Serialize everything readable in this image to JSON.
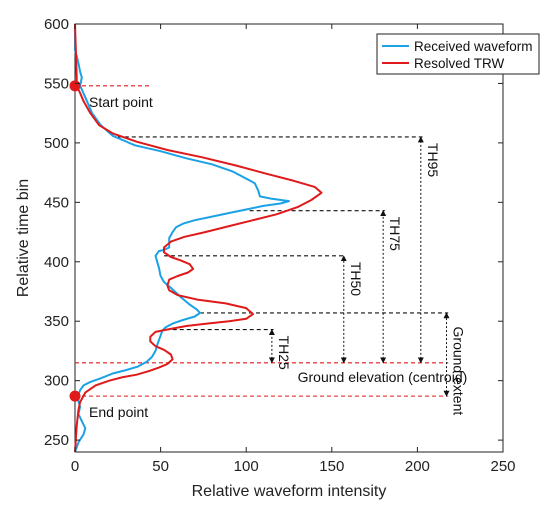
{
  "chart_data": {
    "type": "line",
    "xlabel": "Relative waveform intensity",
    "ylabel": "Relative time bin",
    "xlim": [
      0,
      250
    ],
    "ylim": [
      240,
      600
    ],
    "x_ticks": [
      0,
      50,
      100,
      150,
      200,
      250
    ],
    "y_ticks": [
      250,
      300,
      350,
      400,
      450,
      500,
      550,
      600
    ],
    "grid": false,
    "legend_position": "top-right",
    "series": [
      {
        "name": "Received waveform",
        "color": "#1aa1e6",
        "points": [
          [
            0,
            240
          ],
          [
            2,
            248
          ],
          [
            5,
            255
          ],
          [
            6,
            260
          ],
          [
            4,
            266
          ],
          [
            2,
            272
          ],
          [
            3,
            278
          ],
          [
            2,
            283
          ],
          [
            2,
            288
          ],
          [
            3,
            292
          ],
          [
            5,
            296
          ],
          [
            9,
            299
          ],
          [
            15,
            302
          ],
          [
            22,
            306
          ],
          [
            30,
            309
          ],
          [
            37,
            312
          ],
          [
            42,
            316
          ],
          [
            45,
            320
          ],
          [
            47,
            325
          ],
          [
            48,
            330
          ],
          [
            49,
            334
          ],
          [
            50,
            338
          ],
          [
            51,
            342
          ],
          [
            53,
            345
          ],
          [
            57,
            348
          ],
          [
            63,
            351
          ],
          [
            70,
            354
          ],
          [
            73,
            357
          ],
          [
            71,
            360
          ],
          [
            67,
            364
          ],
          [
            62,
            370
          ],
          [
            56,
            378
          ],
          [
            52,
            383
          ],
          [
            50,
            388
          ],
          [
            49,
            395
          ],
          [
            48,
            400
          ],
          [
            47,
            405
          ],
          [
            49,
            409
          ],
          [
            52,
            410
          ],
          [
            55,
            412
          ],
          [
            55,
            420
          ],
          [
            57,
            425
          ],
          [
            59,
            429
          ],
          [
            63,
            432
          ],
          [
            70,
            435
          ],
          [
            80,
            438
          ],
          [
            90,
            441
          ],
          [
            100,
            444
          ],
          [
            110,
            447
          ],
          [
            120,
            449
          ],
          [
            125,
            451
          ],
          [
            115,
            453
          ],
          [
            108,
            455
          ],
          [
            107,
            460
          ],
          [
            105,
            466
          ],
          [
            100,
            470
          ],
          [
            92,
            476
          ],
          [
            80,
            482
          ],
          [
            65,
            487
          ],
          [
            50,
            493
          ],
          [
            35,
            498
          ],
          [
            22,
            506
          ],
          [
            15,
            515
          ],
          [
            10,
            525
          ],
          [
            7,
            535
          ],
          [
            4,
            545
          ],
          [
            3,
            548
          ],
          [
            4,
            555
          ],
          [
            3,
            560
          ],
          [
            2,
            567
          ],
          [
            1,
            573
          ],
          [
            0,
            578
          ],
          [
            0,
            600
          ]
        ]
      },
      {
        "name": "Resolved TRW",
        "color": "#e01a1a",
        "points": [
          [
            0,
            240
          ],
          [
            1,
            262
          ],
          [
            2,
            275
          ],
          [
            3,
            282
          ],
          [
            6,
            290
          ],
          [
            12,
            296
          ],
          [
            20,
            300
          ],
          [
            28,
            303
          ],
          [
            36,
            305
          ],
          [
            43,
            308
          ],
          [
            49,
            311
          ],
          [
            54,
            314
          ],
          [
            57,
            318
          ],
          [
            56,
            322
          ],
          [
            52,
            326
          ],
          [
            47,
            329
          ],
          [
            44,
            333
          ],
          [
            44,
            337
          ],
          [
            47,
            341
          ],
          [
            54,
            343
          ],
          [
            65,
            346
          ],
          [
            77,
            348
          ],
          [
            90,
            350
          ],
          [
            100,
            352
          ],
          [
            104,
            356
          ],
          [
            100,
            361
          ],
          [
            88,
            365
          ],
          [
            72,
            368
          ],
          [
            60,
            372
          ],
          [
            55,
            376
          ],
          [
            54,
            380
          ],
          [
            55,
            385
          ],
          [
            60,
            388
          ],
          [
            66,
            391
          ],
          [
            69,
            394
          ],
          [
            67,
            398
          ],
          [
            62,
            401
          ],
          [
            56,
            404
          ],
          [
            52,
            408
          ],
          [
            52,
            412
          ],
          [
            56,
            417
          ],
          [
            64,
            421
          ],
          [
            76,
            425
          ],
          [
            90,
            430
          ],
          [
            104,
            435
          ],
          [
            118,
            440
          ],
          [
            130,
            446
          ],
          [
            138,
            452
          ],
          [
            144,
            458
          ],
          [
            140,
            463
          ],
          [
            128,
            468
          ],
          [
            112,
            474
          ],
          [
            94,
            481
          ],
          [
            74,
            488
          ],
          [
            54,
            494
          ],
          [
            36,
            501
          ],
          [
            22,
            508
          ],
          [
            14,
            515
          ],
          [
            9,
            525
          ],
          [
            5,
            535
          ],
          [
            3,
            542
          ],
          [
            1,
            548
          ],
          [
            1,
            555
          ],
          [
            0,
            600
          ]
        ]
      }
    ],
    "markers": [
      {
        "label": "Start point",
        "x": 0,
        "y": 548
      },
      {
        "label": "End point",
        "x": 0,
        "y": 287
      }
    ],
    "annotations": [
      {
        "label": "TH95",
        "x": 202,
        "y_from": 315,
        "y_to": 505
      },
      {
        "label": "TH75",
        "x": 180,
        "y_from": 315,
        "y_to": 443
      },
      {
        "label": "TH50",
        "x": 157,
        "y_from": 315,
        "y_to": 405
      },
      {
        "label": "TH25",
        "x": 115,
        "y_from": 315,
        "y_to": 343
      },
      {
        "label": "Ground extent",
        "x": 217,
        "y_from": 287,
        "y_to": 357
      },
      {
        "label": "Ground elevation (centroid)",
        "x": 95,
        "y": 315
      }
    ],
    "reference_lines": [
      {
        "kind": "red",
        "y": 548,
        "x_from": 0,
        "x_to": 45
      },
      {
        "kind": "red",
        "y": 315,
        "x_from": 0,
        "x_to": 218
      },
      {
        "kind": "red",
        "y": 287,
        "x_from": 0,
        "x_to": 218
      },
      {
        "kind": "black",
        "y": 505,
        "x_from": 25,
        "x_to": 203
      },
      {
        "kind": "black",
        "y": 443,
        "x_from": 102,
        "x_to": 181
      },
      {
        "kind": "black",
        "y": 405,
        "x_from": 52,
        "x_to": 158
      },
      {
        "kind": "black",
        "y": 357,
        "x_from": 73,
        "x_to": 218
      },
      {
        "kind": "black",
        "y": 343,
        "x_from": 53,
        "x_to": 116
      }
    ]
  }
}
